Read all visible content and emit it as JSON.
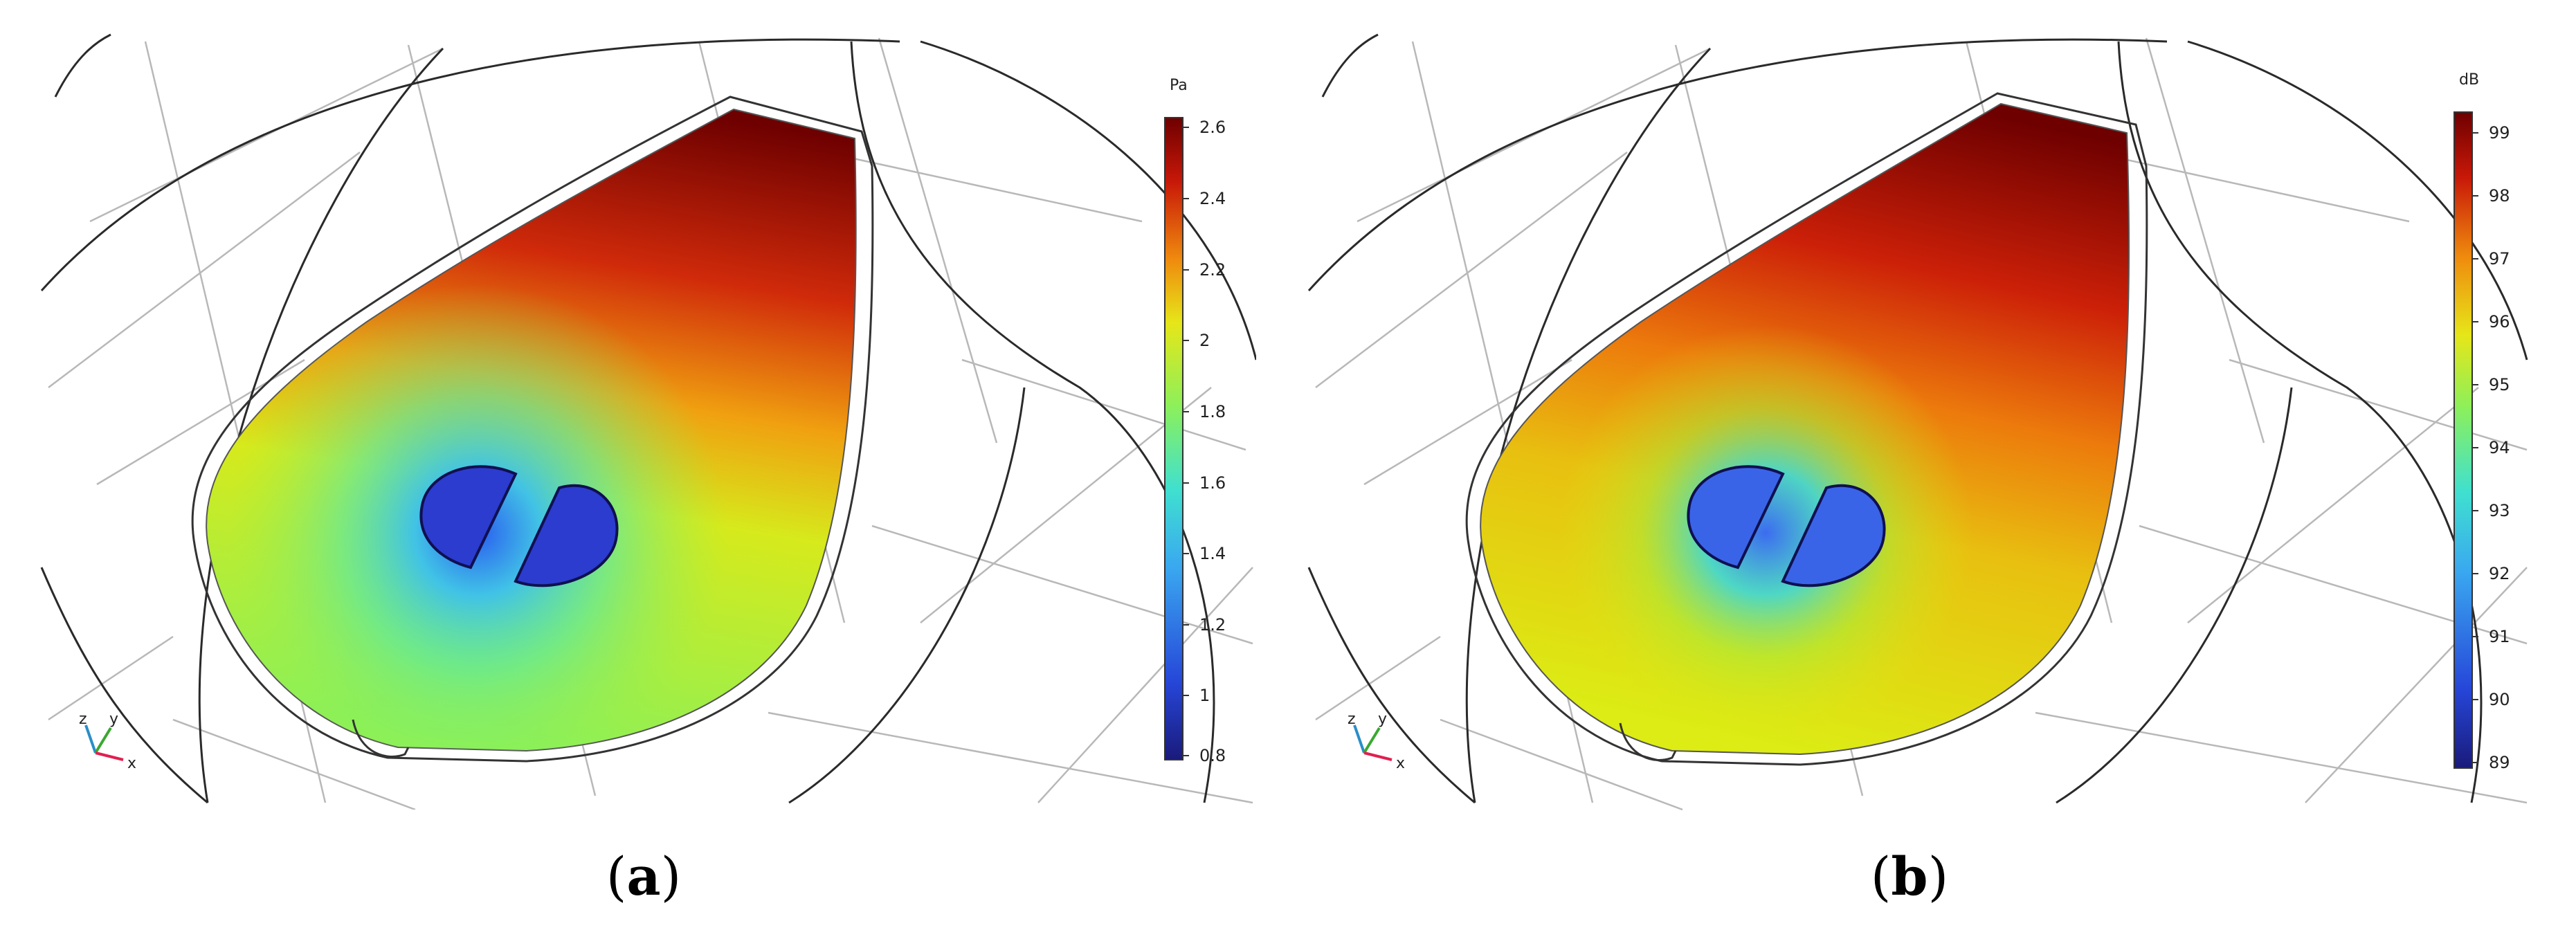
{
  "panels": [
    {
      "caption": "(a)",
      "caption_letter": "a",
      "colorbar": {
        "unit": "Pa",
        "ticks": [
          "2.6",
          "2.4",
          "2.2",
          "2",
          "1.8",
          "1.6",
          "1.4",
          "1.2",
          "1",
          "0.8"
        ],
        "min": 0.8,
        "max": 2.6
      },
      "axes_triad": {
        "z": "z",
        "y": "y",
        "x": "x"
      }
    },
    {
      "caption": "(b)",
      "caption_letter": "b",
      "colorbar": {
        "unit": "dB",
        "ticks": [
          "99",
          "98",
          "97",
          "96",
          "95",
          "94",
          "93",
          "92",
          "91",
          "90",
          "89"
        ],
        "min": 89,
        "max": 99.4
      },
      "axes_triad": {
        "z": "z",
        "y": "y",
        "x": "x"
      }
    }
  ],
  "colors": {
    "jet_low": "#1a1a7a",
    "jet_blue": "#2f5be8",
    "jet_cyan": "#3fe0d8",
    "jet_green": "#8cf05a",
    "jet_yellow": "#e6e619",
    "jet_orange": "#ef8a0e",
    "jet_red": "#c81808",
    "jet_high": "#6e0000"
  }
}
